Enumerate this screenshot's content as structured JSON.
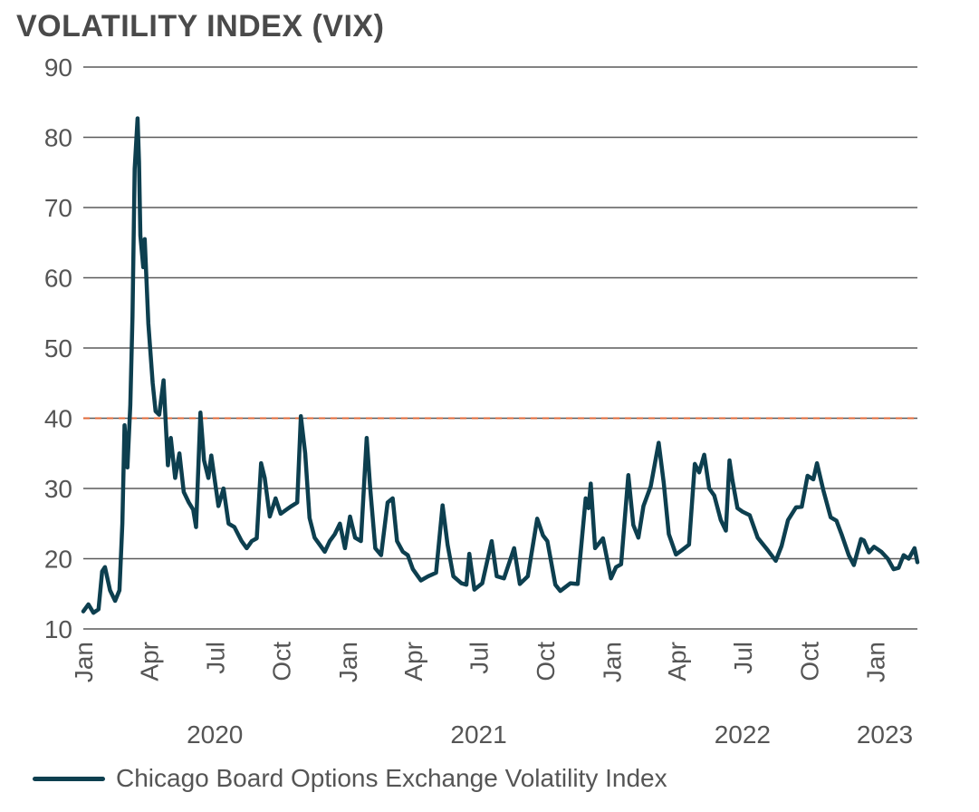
{
  "chart_data": {
    "type": "line",
    "title": "VOLATILITY INDEX (VIX)",
    "xlabel": "",
    "ylabel": "",
    "ylim": [
      10,
      90
    ],
    "yticks": [
      "10",
      "20",
      "30",
      "40",
      "50",
      "60",
      "70",
      "80",
      "90"
    ],
    "xlim": [
      "2020-01-01",
      "2023-02-28"
    ],
    "grid": true,
    "legend_position": "bottom-left",
    "reference_line": {
      "value": 40,
      "style": "dashed",
      "color": "#e06a3a"
    },
    "month_ticks": [
      {
        "date": "2020-01-01",
        "label": "Jan"
      },
      {
        "date": "2020-04-01",
        "label": "Apr"
      },
      {
        "date": "2020-07-01",
        "label": "Jul"
      },
      {
        "date": "2020-10-01",
        "label": "Oct"
      },
      {
        "date": "2021-01-01",
        "label": "Jan"
      },
      {
        "date": "2021-04-01",
        "label": "Apr"
      },
      {
        "date": "2021-07-01",
        "label": "Jul"
      },
      {
        "date": "2021-10-01",
        "label": "Oct"
      },
      {
        "date": "2022-01-01",
        "label": "Jan"
      },
      {
        "date": "2022-04-01",
        "label": "Apr"
      },
      {
        "date": "2022-07-01",
        "label": "Jul"
      },
      {
        "date": "2022-10-01",
        "label": "Oct"
      },
      {
        "date": "2023-01-01",
        "label": "Jan"
      }
    ],
    "year_labels": [
      {
        "date": "2020-07-01",
        "label": "2020"
      },
      {
        "date": "2021-07-01",
        "label": "2021"
      },
      {
        "date": "2022-07-01",
        "label": "2022"
      },
      {
        "date": "2023-01-31",
        "label": "2023"
      }
    ],
    "series": [
      {
        "name": "Chicago Board Options Exchange Volatility Index",
        "color": "#0d3f4f",
        "points": [
          [
            "2020-01-01",
            12.5
          ],
          [
            "2020-01-08",
            13.5
          ],
          [
            "2020-01-15",
            12.3
          ],
          [
            "2020-01-22",
            12.8
          ],
          [
            "2020-01-27",
            18.2
          ],
          [
            "2020-01-31",
            18.8
          ],
          [
            "2020-02-07",
            15.5
          ],
          [
            "2020-02-14",
            14.0
          ],
          [
            "2020-02-20",
            15.5
          ],
          [
            "2020-02-24",
            25.0
          ],
          [
            "2020-02-27",
            39.0
          ],
          [
            "2020-03-02",
            33.0
          ],
          [
            "2020-03-06",
            41.9
          ],
          [
            "2020-03-09",
            54.5
          ],
          [
            "2020-03-12",
            75.5
          ],
          [
            "2020-03-16",
            82.7
          ],
          [
            "2020-03-18",
            76.5
          ],
          [
            "2020-03-20",
            66.0
          ],
          [
            "2020-03-24",
            61.5
          ],
          [
            "2020-03-26",
            65.5
          ],
          [
            "2020-03-31",
            53.5
          ],
          [
            "2020-04-06",
            45.0
          ],
          [
            "2020-04-10",
            41.0
          ],
          [
            "2020-04-15",
            40.5
          ],
          [
            "2020-04-21",
            45.4
          ],
          [
            "2020-04-27",
            33.3
          ],
          [
            "2020-05-01",
            37.2
          ],
          [
            "2020-05-07",
            31.5
          ],
          [
            "2020-05-13",
            35.0
          ],
          [
            "2020-05-19",
            29.5
          ],
          [
            "2020-05-26",
            28.0
          ],
          [
            "2020-06-01",
            27.0
          ],
          [
            "2020-06-05",
            24.5
          ],
          [
            "2020-06-11",
            40.8
          ],
          [
            "2020-06-16",
            34.0
          ],
          [
            "2020-06-22",
            31.5
          ],
          [
            "2020-06-26",
            34.7
          ],
          [
            "2020-07-06",
            27.5
          ],
          [
            "2020-07-13",
            30.0
          ],
          [
            "2020-07-20",
            25.0
          ],
          [
            "2020-07-28",
            24.5
          ],
          [
            "2020-08-07",
            22.5
          ],
          [
            "2020-08-14",
            21.5
          ],
          [
            "2020-08-21",
            22.5
          ],
          [
            "2020-08-28",
            22.9
          ],
          [
            "2020-09-03",
            33.6
          ],
          [
            "2020-09-08",
            31.5
          ],
          [
            "2020-09-15",
            26.0
          ],
          [
            "2020-09-23",
            28.6
          ],
          [
            "2020-09-30",
            26.4
          ],
          [
            "2020-10-08",
            27.0
          ],
          [
            "2020-10-15",
            27.5
          ],
          [
            "2020-10-23",
            28.0
          ],
          [
            "2020-10-28",
            40.3
          ],
          [
            "2020-11-03",
            35.0
          ],
          [
            "2020-11-09",
            25.8
          ],
          [
            "2020-11-16",
            23.0
          ],
          [
            "2020-11-23",
            22.0
          ],
          [
            "2020-11-30",
            21.0
          ],
          [
            "2020-12-07",
            22.5
          ],
          [
            "2020-12-14",
            23.5
          ],
          [
            "2020-12-21",
            25.0
          ],
          [
            "2020-12-28",
            21.5
          ],
          [
            "2021-01-04",
            26.0
          ],
          [
            "2021-01-11",
            23.0
          ],
          [
            "2021-01-19",
            22.5
          ],
          [
            "2021-01-27",
            37.2
          ],
          [
            "2021-02-01",
            30.0
          ],
          [
            "2021-02-08",
            21.5
          ],
          [
            "2021-02-16",
            20.5
          ],
          [
            "2021-02-25",
            28.0
          ],
          [
            "2021-03-04",
            28.6
          ],
          [
            "2021-03-10",
            22.5
          ],
          [
            "2021-03-18",
            21.0
          ],
          [
            "2021-03-25",
            20.5
          ],
          [
            "2021-04-01",
            18.5
          ],
          [
            "2021-04-12",
            16.9
          ],
          [
            "2021-04-22",
            17.5
          ],
          [
            "2021-05-03",
            18.0
          ],
          [
            "2021-05-12",
            27.6
          ],
          [
            "2021-05-19",
            22.0
          ],
          [
            "2021-05-27",
            17.5
          ],
          [
            "2021-06-07",
            16.5
          ],
          [
            "2021-06-14",
            16.3
          ],
          [
            "2021-06-18",
            20.7
          ],
          [
            "2021-06-25",
            15.6
          ],
          [
            "2021-07-06",
            16.5
          ],
          [
            "2021-07-19",
            22.5
          ],
          [
            "2021-07-26",
            17.5
          ],
          [
            "2021-08-05",
            17.2
          ],
          [
            "2021-08-19",
            21.5
          ],
          [
            "2021-08-27",
            16.4
          ],
          [
            "2021-09-07",
            17.5
          ],
          [
            "2021-09-20",
            25.7
          ],
          [
            "2021-09-28",
            23.3
          ],
          [
            "2021-10-04",
            22.5
          ],
          [
            "2021-10-15",
            16.3
          ],
          [
            "2021-10-22",
            15.4
          ],
          [
            "2021-11-05",
            16.5
          ],
          [
            "2021-11-15",
            16.4
          ],
          [
            "2021-11-26",
            28.6
          ],
          [
            "2021-11-30",
            27.2
          ],
          [
            "2021-12-03",
            30.7
          ],
          [
            "2021-12-09",
            21.5
          ],
          [
            "2021-12-20",
            22.9
          ],
          [
            "2021-12-31",
            17.2
          ],
          [
            "2022-01-07",
            18.8
          ],
          [
            "2022-01-14",
            19.2
          ],
          [
            "2022-01-24",
            31.9
          ],
          [
            "2022-01-31",
            24.8
          ],
          [
            "2022-02-07",
            23.0
          ],
          [
            "2022-02-14",
            27.5
          ],
          [
            "2022-02-24",
            30.3
          ],
          [
            "2022-03-07",
            36.5
          ],
          [
            "2022-03-14",
            30.8
          ],
          [
            "2022-03-21",
            23.5
          ],
          [
            "2022-03-31",
            20.6
          ],
          [
            "2022-04-08",
            21.2
          ],
          [
            "2022-04-18",
            22.0
          ],
          [
            "2022-04-26",
            33.5
          ],
          [
            "2022-05-02",
            32.3
          ],
          [
            "2022-05-09",
            34.8
          ],
          [
            "2022-05-16",
            30.0
          ],
          [
            "2022-05-23",
            29.0
          ],
          [
            "2022-06-01",
            25.5
          ],
          [
            "2022-06-08",
            24.0
          ],
          [
            "2022-06-13",
            34.0
          ],
          [
            "2022-06-17",
            31.2
          ],
          [
            "2022-06-24",
            27.2
          ],
          [
            "2022-07-01",
            26.7
          ],
          [
            "2022-07-11",
            26.2
          ],
          [
            "2022-07-22",
            23.0
          ],
          [
            "2022-08-05",
            21.2
          ],
          [
            "2022-08-16",
            19.7
          ],
          [
            "2022-08-24",
            21.8
          ],
          [
            "2022-09-02",
            25.5
          ],
          [
            "2022-09-13",
            27.3
          ],
          [
            "2022-09-21",
            27.4
          ],
          [
            "2022-09-29",
            31.8
          ],
          [
            "2022-10-07",
            31.3
          ],
          [
            "2022-10-12",
            33.6
          ],
          [
            "2022-10-21",
            29.7
          ],
          [
            "2022-10-31",
            25.9
          ],
          [
            "2022-11-08",
            25.4
          ],
          [
            "2022-11-15",
            23.5
          ],
          [
            "2022-11-25",
            20.5
          ],
          [
            "2022-12-02",
            19.1
          ],
          [
            "2022-12-12",
            22.8
          ],
          [
            "2022-12-16",
            22.6
          ],
          [
            "2022-12-23",
            20.9
          ],
          [
            "2022-12-30",
            21.7
          ],
          [
            "2023-01-09",
            21.0
          ],
          [
            "2023-01-18",
            20.0
          ],
          [
            "2023-01-26",
            18.5
          ],
          [
            "2023-02-02",
            18.7
          ],
          [
            "2023-02-09",
            20.5
          ],
          [
            "2023-02-16",
            20.0
          ],
          [
            "2023-02-24",
            21.5
          ],
          [
            "2023-02-28",
            19.5
          ]
        ]
      }
    ]
  },
  "legend": {
    "label": "Chicago Board Options Exchange Volatility Index",
    "color": "#0d3f4f"
  }
}
